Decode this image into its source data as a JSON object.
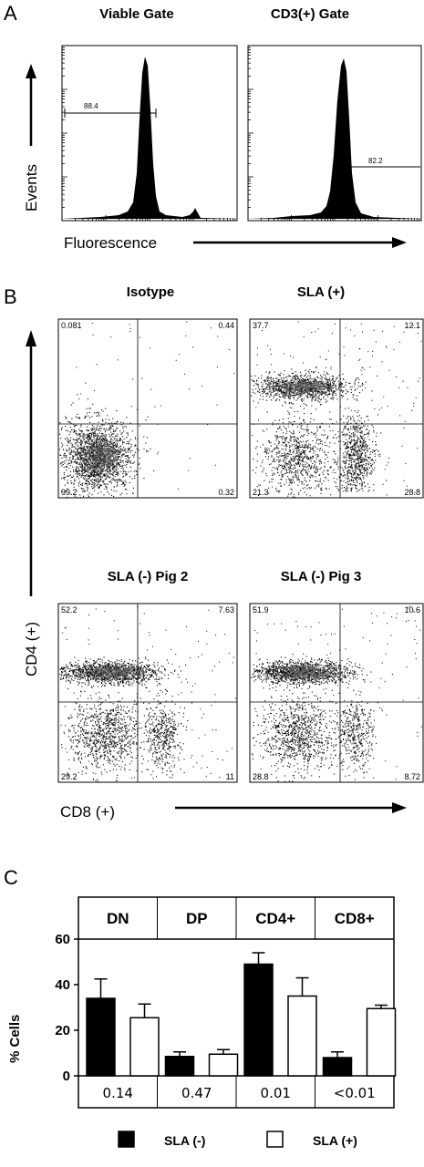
{
  "panel_letters": {
    "a": "A",
    "b": "B",
    "c": "C"
  },
  "panel_a": {
    "histograms": [
      {
        "title": "Viable Gate",
        "gate_value": "88.4"
      },
      {
        "title": "CD3(+) Gate",
        "gate_value": "82.2"
      }
    ],
    "ylabel": "Events",
    "xlabel": "Fluorescence"
  },
  "panel_b": {
    "ylabel": "CD4 (+)",
    "xlabel": "CD8 (+)",
    "plots": [
      {
        "title": "Isotype",
        "quadrants": {
          "ul": "0.081",
          "ur": "0.44",
          "ll": "99.2",
          "lr": "0.32"
        }
      },
      {
        "title": "SLA (+)",
        "quadrants": {
          "ul": "37.7",
          "ur": "12.1",
          "ll": "21.3",
          "lr": "28.8"
        }
      },
      {
        "title": "SLA (-) Pig 2",
        "quadrants": {
          "ul": "52.2",
          "ur": "7.63",
          "ll": "29.2",
          "lr": "11"
        }
      },
      {
        "title": "SLA (-) Pig 3",
        "quadrants": {
          "ul": "51.9",
          "ur": "10.6",
          "ll": "28.8",
          "lr": "8.72"
        }
      }
    ]
  },
  "chart_data": {
    "type": "bar",
    "categories": [
      "DN",
      "DP",
      "CD4+",
      "CD8+"
    ],
    "ylabel": "% Cells",
    "ylim": [
      0,
      60
    ],
    "yticks": [
      "0",
      "20",
      "40",
      "60"
    ],
    "series": [
      {
        "name": "SLA (-)",
        "color": "#000000",
        "values": [
          34,
          8.5,
          49,
          8
        ],
        "errors": [
          8.5,
          2,
          5,
          2.5
        ]
      },
      {
        "name": "SLA (+)",
        "color": "#ffffff",
        "values": [
          25.5,
          9.5,
          35,
          29.5
        ],
        "errors": [
          6,
          2,
          8,
          1.5
        ]
      }
    ],
    "p_values": [
      "0.14",
      "0.47",
      "0.01",
      "<0.01"
    ],
    "legend_position": "bottom"
  }
}
